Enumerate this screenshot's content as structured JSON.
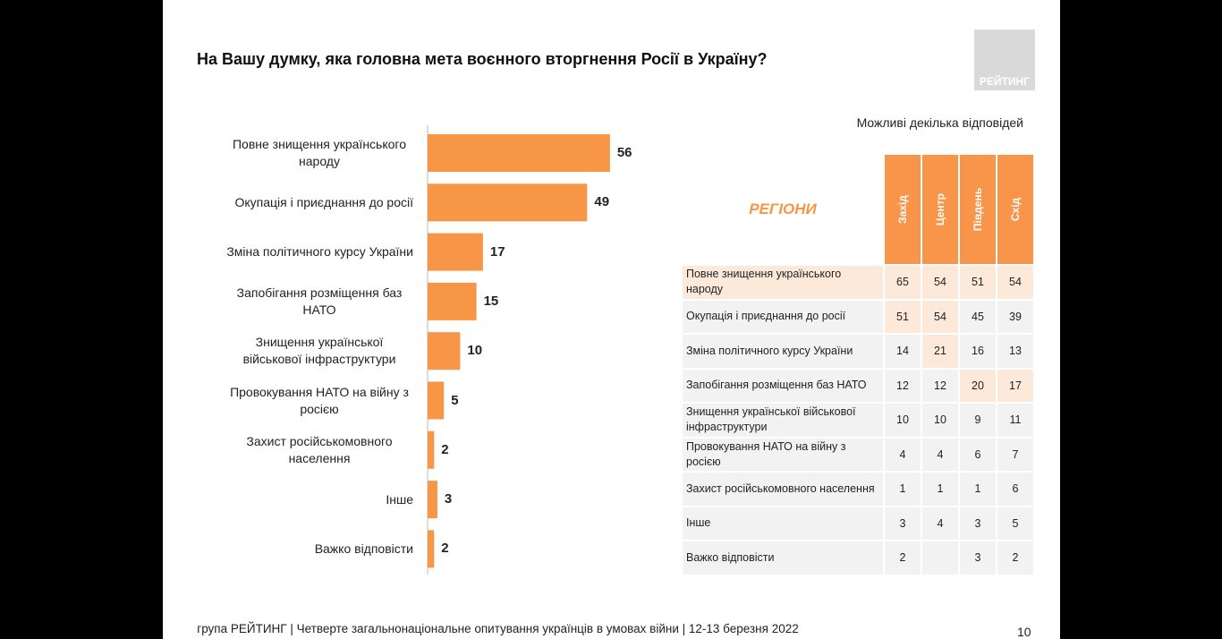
{
  "slide": {
    "title": "На Вашу думку, яка головна мета воєнного вторгнення Росії в Україну?",
    "logo": "РЕЙТИНГ",
    "note": "Можливі декілька відповідей",
    "footer": "група РЕЙТИНГ | Четверте загальнонаціональне опитування українців в умовах війни | 12-13 березня 2022",
    "page": 10
  },
  "chart_data": {
    "type": "bar",
    "orientation": "horizontal",
    "color": "#f79646",
    "categories": [
      "Повне знищення українського народу",
      "Окупація і приєднання до росії",
      "Зміна політичного курсу України",
      "Запобігання розміщення баз НАТО",
      "Знищення української військової інфраструктури",
      "Провокування НАТО на війну з росією",
      "Захист російськомовного населення",
      "Інше",
      "Важко відповісти"
    ],
    "values": [
      56,
      49,
      17,
      15,
      10,
      5,
      2,
      3,
      2
    ]
  },
  "table": {
    "title": "РЕГІОНИ",
    "columns": [
      "Захід",
      "Центр",
      "Південь",
      "Схід"
    ],
    "rows": [
      {
        "label": "Повне знищення українського народу",
        "values": [
          65,
          54,
          51,
          54
        ]
      },
      {
        "label": "Окупація і приєднання до росії",
        "values": [
          51,
          54,
          45,
          39
        ]
      },
      {
        "label": "Зміна політичного курсу України",
        "values": [
          14,
          21,
          16,
          13
        ]
      },
      {
        "label": "Запобігання розміщення баз НАТО",
        "values": [
          12,
          12,
          20,
          17
        ]
      },
      {
        "label": "Знищення української військової інфраструктури",
        "values": [
          10,
          10,
          9,
          11
        ]
      },
      {
        "label": "Провокування НАТО на війну з росією",
        "values": [
          4,
          4,
          6,
          7
        ]
      },
      {
        "label": "Захист російськомовного населення",
        "values": [
          1,
          1,
          1,
          6
        ]
      },
      {
        "label": "Інше",
        "values": [
          3,
          4,
          3,
          5
        ]
      },
      {
        "label": "Важко відповісти",
        "values": [
          2,
          null,
          3,
          2
        ]
      }
    ]
  }
}
